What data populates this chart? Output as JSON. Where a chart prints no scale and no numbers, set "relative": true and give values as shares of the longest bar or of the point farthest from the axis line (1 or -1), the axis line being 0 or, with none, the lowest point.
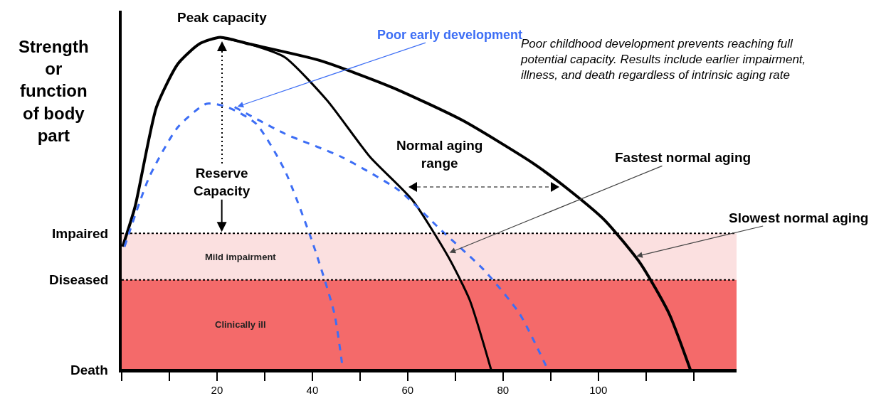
{
  "chart_data": {
    "type": "line",
    "relative": true,
    "ylabel": "Strength or function of body part",
    "xlim": [
      0,
      129
    ],
    "xticks": [
      {
        "value": 0,
        "label": null
      },
      {
        "value": 10,
        "label": null
      },
      20,
      {
        "value": 30,
        "label": null
      },
      40,
      {
        "value": 50,
        "label": null
      },
      60,
      {
        "value": 70,
        "label": null
      },
      80,
      {
        "value": 90,
        "label": null
      },
      100,
      {
        "value": 110,
        "label": null
      },
      {
        "value": 120,
        "label": null
      }
    ],
    "series": [
      {
        "color": "#000000",
        "line_style": "solid",
        "x": [
          0.2,
          2.8,
          7.3,
          11.8,
          16.3,
          20.7,
          26.7,
          41.6,
          56.6,
          71.5,
          86.4,
          93.9,
          101.3,
          108.8,
          114.8,
          119.3
        ],
        "values": [
          0.37,
          0.49,
          0.79,
          0.92,
          0.98,
          1.0,
          0.98,
          0.93,
          0.85,
          0.75,
          0.62,
          0.54,
          0.45,
          0.32,
          0.17,
          0
        ]
      },
      {
        "color": "#000000",
        "line_style": "solid",
        "x": [
          20.7,
          26.7,
          34.2,
          43.1,
          52.1,
          61,
          68.5,
          73,
          77.5
        ],
        "values": [
          1.0,
          0.98,
          0.94,
          0.81,
          0.64,
          0.51,
          0.34,
          0.21,
          0
        ]
      },
      {
        "color": "#3d6ef5",
        "line_style": "dashed",
        "x": [
          0.6,
          5.8,
          11.8,
          17.8,
          22.2,
          28.2,
          34.2,
          40.1,
          44.6,
          46.4
        ],
        "values": [
          0.37,
          0.58,
          0.73,
          0.8,
          0.79,
          0.74,
          0.6,
          0.38,
          0.17,
          0
        ]
      },
      {
        "color": "#3d6ef5",
        "line_style": "dashed",
        "x": [
          23.7,
          34.2,
          46.1,
          58.1,
          67,
          76,
          83.4,
          89.4
        ],
        "values": [
          0.79,
          0.71,
          0.64,
          0.54,
          0.42,
          0.3,
          0.17,
          0
        ]
      }
    ],
    "ref_lines": [
      {
        "axis": "y",
        "value": 0.41,
        "label": "Impaired",
        "color": "#000000",
        "line_style": "dotted"
      },
      {
        "axis": "y",
        "value": 0.27,
        "label": "Diseased",
        "color": "#000000",
        "line_style": "dotted"
      },
      {
        "axis": "y",
        "value": 0,
        "label": "Death",
        "color": "#000000",
        "line_style": "solid"
      }
    ],
    "bands": [
      {
        "axis": "y",
        "from": 0.27,
        "to": 0.41,
        "label": "Mild impairment",
        "color": "#fbe0e0"
      },
      {
        "axis": "y",
        "from": 0,
        "to": 0.27,
        "label": "Clinically ill",
        "color": "#f46a6a"
      }
    ],
    "annotations": [
      {
        "text": "Peak capacity",
        "x": 21,
        "y": 1.0
      },
      {
        "text": "Poor early development",
        "x": 24,
        "y": 0.79
      },
      "Poor childhood development prevents reaching full potential capacity. Results include earlier impairment, illness, and death regardless of intrinsic aging rate",
      {
        "text": "Reserve Capacity",
        "x": 21,
        "y": 0.41
      },
      "Normal aging range",
      {
        "text": "Fastest normal aging",
        "x": 68.5,
        "y": 0.35
      },
      {
        "text": "Slowest normal aging",
        "x": 107.7,
        "y": 0.34
      }
    ],
    "grid": false,
    "marker": "none"
  }
}
